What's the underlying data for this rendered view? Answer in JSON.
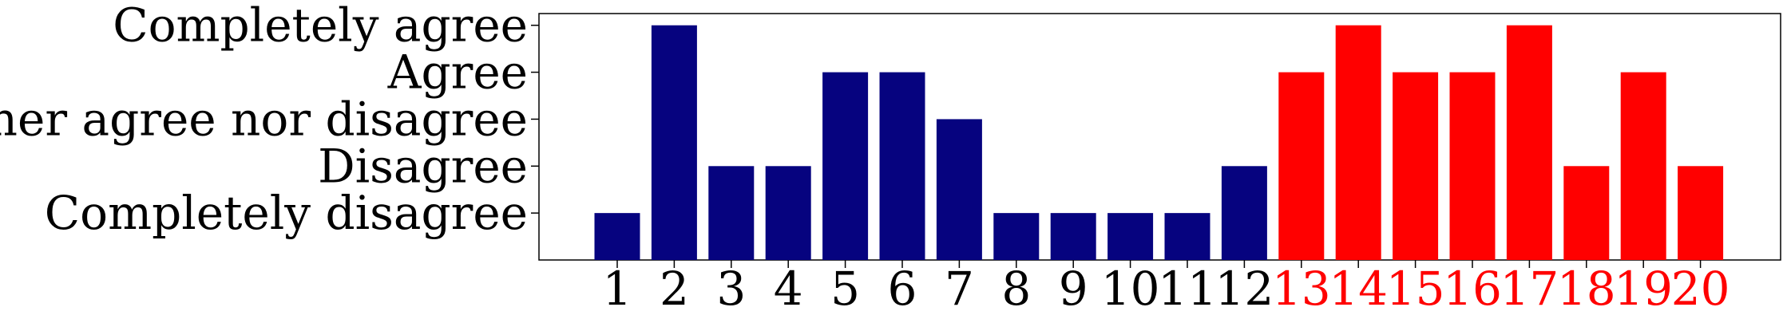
{
  "chart_data": {
    "type": "bar",
    "categories": [
      "1",
      "2",
      "3",
      "4",
      "5",
      "6",
      "7",
      "8",
      "9",
      "10",
      "11",
      "12",
      "13",
      "14",
      "15",
      "16",
      "17",
      "18",
      "19",
      "20"
    ],
    "values": [
      1,
      5,
      2,
      2,
      4,
      4,
      3,
      1,
      1,
      1,
      1,
      2,
      4,
      5,
      4,
      4,
      5,
      2,
      4,
      2
    ],
    "ytick_values": [
      1,
      2,
      3,
      4,
      5
    ],
    "ytick_labels": [
      "Completely disagree",
      "Disagree",
      "Neither agree nor disagree",
      "Agree",
      "Completely agree"
    ],
    "ylim": [
      0,
      5.25
    ],
    "title": "",
    "xlabel": "",
    "ylabel": "",
    "grid": false,
    "colors": {
      "group_a": "#06037f",
      "group_b": "#ff0000",
      "group_a_label": "#000000",
      "group_b_label": "#ff0000"
    },
    "bar_color_group": [
      "a",
      "a",
      "a",
      "a",
      "a",
      "a",
      "a",
      "a",
      "a",
      "a",
      "a",
      "a",
      "b",
      "b",
      "b",
      "b",
      "b",
      "b",
      "b",
      "b"
    ]
  }
}
